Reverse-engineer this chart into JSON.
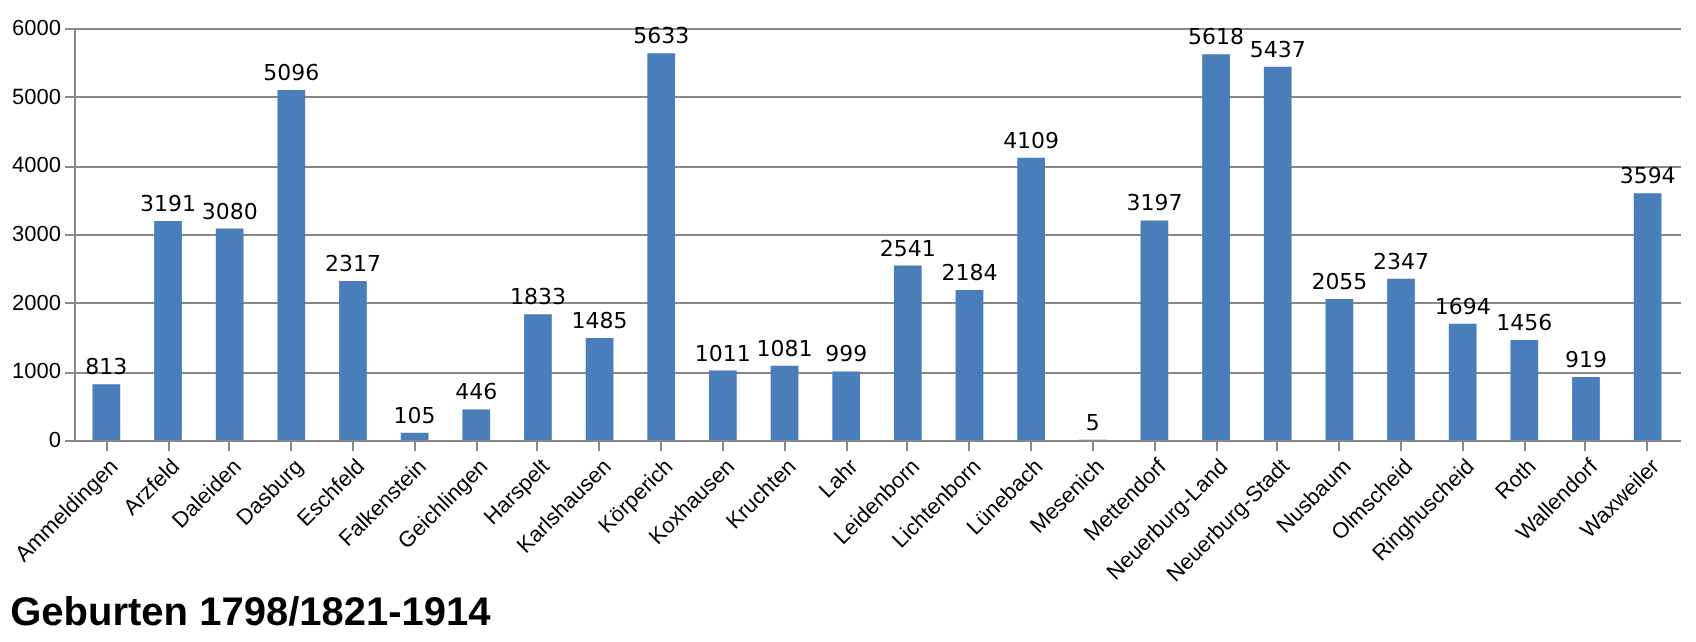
{
  "chart_data": {
    "type": "bar",
    "title": "Geburten 1798/1821-1914",
    "categories": [
      "Ammeldingen",
      "Arzfeld",
      "Daleiden",
      "Dasburg",
      "Eschfeld",
      "Falkenstein",
      "Geichlingen",
      "Harspelt",
      "Karlshausen",
      "Körperich",
      "Koxhausen",
      "Kruchten",
      "Lahr",
      "Leidenborn",
      "Lichtenborn",
      "Lünebach",
      "Mesenich",
      "Mettendorf",
      "Neuerburg-Land",
      "Neuerburg-Stadt",
      "Nusbaum",
      "Olmscheid",
      "Ringhuscheid",
      "Roth",
      "Wallendorf",
      "Waxweiler"
    ],
    "values": [
      813,
      3191,
      3080,
      5096,
      2317,
      105,
      446,
      1833,
      1485,
      5633,
      1011,
      1081,
      999,
      2541,
      2184,
      4109,
      5,
      3197,
      5618,
      5437,
      2055,
      2347,
      1694,
      1456,
      919,
      3594
    ],
    "color": "#4a7ebb",
    "ylim": [
      0,
      6000
    ],
    "yticks": [
      0,
      1000,
      2000,
      3000,
      4000,
      5000,
      6000
    ],
    "grid": "y",
    "data_labels": true
  }
}
